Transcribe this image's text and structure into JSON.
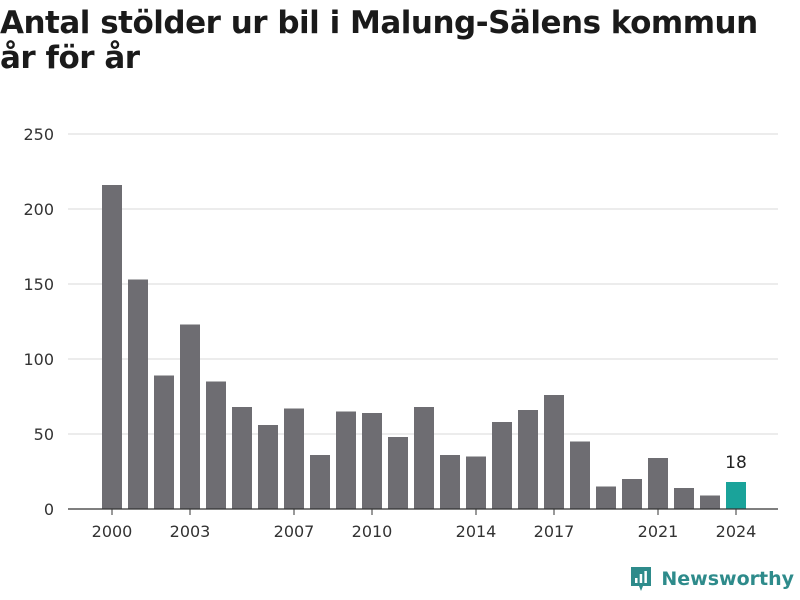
{
  "chart_data": {
    "type": "bar",
    "title": "Antal stölder ur bil i Malung-Sälens kommun år för år",
    "categories": [
      "2000",
      "2001",
      "2002",
      "2003",
      "2004",
      "2005",
      "2006",
      "2007",
      "2008",
      "2009",
      "2010",
      "2011",
      "2012",
      "2013",
      "2014",
      "2015",
      "2016",
      "2017",
      "2018",
      "2019",
      "2020",
      "2021",
      "2022",
      "2023",
      "2024"
    ],
    "values": [
      216,
      153,
      89,
      123,
      85,
      68,
      56,
      67,
      36,
      65,
      64,
      48,
      68,
      36,
      35,
      58,
      66,
      76,
      45,
      15,
      20,
      34,
      14,
      9,
      18
    ],
    "x_tick_labels": [
      "2000",
      "2003",
      "2007",
      "2010",
      "2014",
      "2017",
      "2021",
      "2024"
    ],
    "y_ticks": [
      0,
      50,
      100,
      150,
      200,
      250
    ],
    "ylim": [
      0,
      250
    ],
    "xlabel": "",
    "ylabel": "",
    "highlight": {
      "category": "2024",
      "label": "18"
    },
    "grid": true,
    "legend": "none",
    "colors": {
      "bar": "#6e6d72",
      "highlight": "#1aa39a",
      "grid": "#d9d9d9",
      "axis": "#333333"
    }
  },
  "brand": {
    "name": "Newsworthy",
    "icon": "newsworthy-logo-icon",
    "color": "#2e8b8b"
  }
}
